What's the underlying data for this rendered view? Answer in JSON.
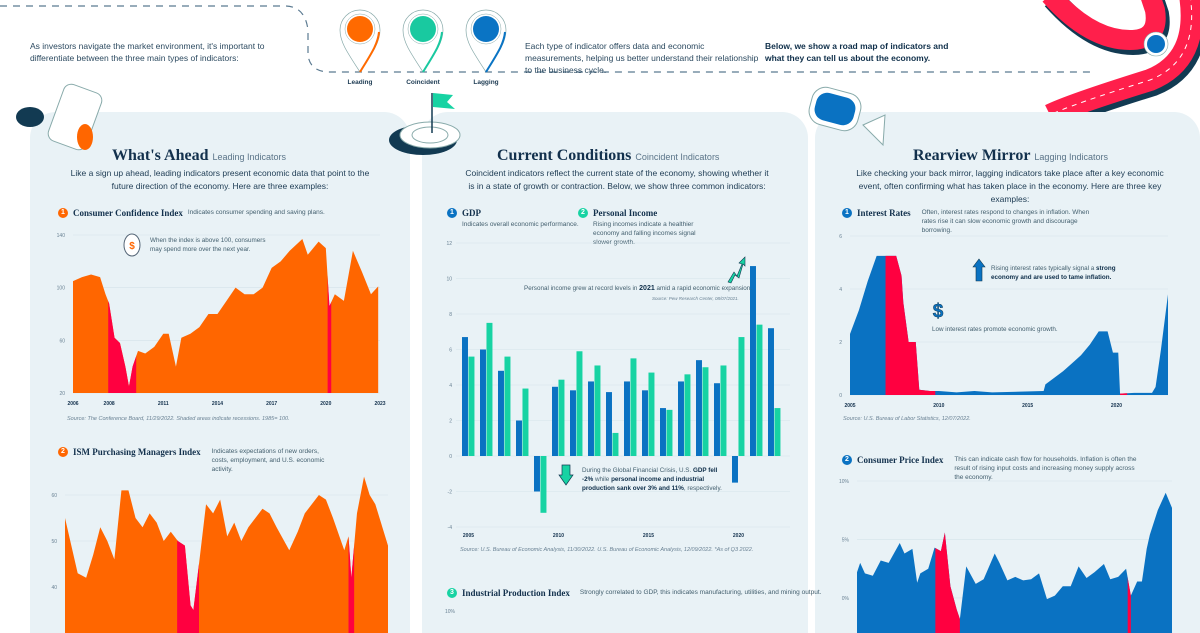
{
  "intro": {
    "left_text": "As investors navigate the market environment, it's important to differentiate between the three main types of indicators:",
    "middle_text": "Each type of indicator offers data and economic measurements, helping us better understand their relationship to the business cycle.",
    "right_text": "Below, we show a road map of indicators and what they can tell us about the economy.",
    "pins": [
      {
        "label": "Leading",
        "color": "#ff6a00",
        "icon": "signpost-icon"
      },
      {
        "label": "Coincident",
        "color": "#19c9a0",
        "icon": "binoculars-icon"
      },
      {
        "label": "Lagging",
        "color": "#0a74c4",
        "icon": "telescope-icon"
      }
    ]
  },
  "colors": {
    "leading": "#ff6600",
    "coincident": "#17d3a3",
    "lagging": "#0a72c2",
    "recession": "#ff0040",
    "panel": "#e9f2f6",
    "road": "#ff1f4b"
  },
  "panels": {
    "leading": {
      "title": "What's Ahead",
      "subtitle": "Leading Indicators",
      "description": "Like a sign up ahead, leading indicators present economic data that point to the future direction of the economy. Here are three examples:"
    },
    "coincident": {
      "title": "Current Conditions",
      "subtitle": "Coincident Indicators",
      "description": "Coincident indicators reflect the current state of the economy, showing whether it is in a state of growth or contraction. Below, we show three common indicators:"
    },
    "lagging": {
      "title": "Rearview Mirror",
      "subtitle": "Lagging Indicators",
      "description": "Like checking your back mirror, lagging indicators take place after a key economic event, often confirming what has taken place in the economy. Here are three key examples:"
    }
  },
  "sections": {
    "cci": {
      "num": "1",
      "title": "Consumer Confidence Index",
      "text": "Indicates consumer spending and saving plans.",
      "note": "When the index is above 100, consumers may spend more over the next year.",
      "source": "Source: The Conference Board, 11/29/2022. Shaded areas indicate recessions. 1985= 100."
    },
    "ism": {
      "num": "2",
      "title": "ISM Purchasing Managers Index",
      "text": "Indicates expectations of new orders, costs, employment, and U.S. economic activity."
    },
    "gdp": {
      "num": "1",
      "title": "GDP",
      "text": "Indicates overall economic performance."
    },
    "pi": {
      "num": "2",
      "title": "Personal Income",
      "text": "Rising incomes indicate a healthier economy and falling incomes signal slower growth."
    },
    "gdp_note_top": {
      "pre": "Personal income grew at record levels in ",
      "bold": "2021",
      "post": " amid a rapid economic expansion.",
      "source": "Source: Pew Research Center, 08/07/2021."
    },
    "gdp_note_bottom": {
      "a": "During the Global Financial Crisis, U.S. ",
      "b": "GDP fell -2%",
      "c": " while ",
      "d": "personal income and industrial production sank over 3% and 11%",
      "e": ", respectively."
    },
    "gdp_source": "Source: U.S. Bureau of Economic Analysis, 11/30/2022. U.S. Bureau of Economic Analysis, 12/09/2022. *As of Q3 2022.",
    "ipi": {
      "num": "3",
      "title": "Industrial Production Index",
      "text": "Strongly correlated to GDP, this indicates manufacturing, utilities, and mining output.",
      "tick": "10%"
    },
    "rates": {
      "num": "1",
      "title": "Interest Rates",
      "text": "Often, interest rates respond to changes in inflation. When rates rise it can slow economic growth and discourage borrowing.",
      "note1_pre": "Rising interest rates typically signal a ",
      "note1_bold": "strong economy and are used to tame inflation.",
      "note2": "Low interest rates promote economic growth.",
      "source": "Source: U.S. Bureau of Labor Statistics, 12/07/2022."
    },
    "cpi": {
      "num": "2",
      "title": "Consumer Price Index",
      "text": "This can indicate cash flow for households. Inflation is often the result of rising input costs and increasing money supply across the economy."
    }
  },
  "chart_data": [
    {
      "id": "cci",
      "type": "area",
      "ylim": [
        20,
        140
      ],
      "yticks": [
        "20",
        "60",
        "100",
        "140"
      ],
      "xlim": [
        2006,
        2023
      ],
      "xticks": [
        "2006",
        "2008",
        "2011",
        "2014",
        "2017",
        "2020",
        "2023"
      ],
      "recessions": [
        [
          2007.95,
          2009.5
        ],
        [
          2020.1,
          2020.3
        ]
      ],
      "x": [
        2006,
        2006.5,
        2007,
        2007.5,
        2007.8,
        2008,
        2008.3,
        2008.6,
        2008.9,
        2009.1,
        2009.3,
        2009.6,
        2010,
        2010.5,
        2011,
        2011.3,
        2011.7,
        2012,
        2012.5,
        2013,
        2013.5,
        2014,
        2014.5,
        2015,
        2015.5,
        2016,
        2016.5,
        2017,
        2017.5,
        2018,
        2018.7,
        2019,
        2019.6,
        2020,
        2020.2,
        2020.5,
        2021,
        2021.5,
        2022,
        2022.5,
        2022.9
      ],
      "y": [
        105,
        108,
        110,
        108,
        95,
        88,
        62,
        58,
        40,
        25,
        40,
        52,
        50,
        55,
        65,
        65,
        40,
        62,
        65,
        70,
        80,
        80,
        90,
        100,
        95,
        95,
        100,
        115,
        120,
        128,
        137,
        125,
        135,
        130,
        86,
        95,
        90,
        128,
        112,
        95,
        101
      ]
    },
    {
      "id": "ism",
      "type": "area",
      "ylim": [
        30,
        65
      ],
      "yticks": [
        "40",
        "50",
        "60"
      ],
      "xlim": [
        2000,
        2022.9
      ],
      "recessions": [
        [
          2007.95,
          2009.5
        ],
        [
          2020.1,
          2020.5
        ]
      ],
      "x": [
        2000,
        2000.9,
        2001.5,
        2002,
        2002.5,
        2003,
        2003.5,
        2004,
        2004.5,
        2005,
        2005.5,
        2006,
        2006.5,
        2007,
        2007.5,
        2008,
        2008.5,
        2008.9,
        2009.1,
        2009.5,
        2010,
        2010.5,
        2011,
        2011.5,
        2012,
        2012.5,
        2013,
        2013.5,
        2014,
        2014.5,
        2015,
        2015.9,
        2016.5,
        2017,
        2018,
        2018.5,
        2019,
        2019.8,
        2020.1,
        2020.3,
        2020.7,
        2021.2,
        2021.6,
        2022,
        2022.5,
        2022.9
      ],
      "y": [
        55,
        43,
        42,
        47,
        53,
        50,
        46,
        61,
        61,
        55,
        53,
        56,
        54,
        50,
        52,
        50,
        49,
        36,
        35,
        45,
        58,
        56,
        59,
        51,
        54,
        50,
        53,
        55,
        57,
        56,
        53,
        48,
        52,
        56,
        60,
        59,
        55,
        48,
        51,
        42,
        56,
        64,
        60,
        58,
        53,
        49
      ]
    },
    {
      "id": "gdp_pi",
      "type": "bar",
      "ylim": [
        -4,
        12
      ],
      "yticks": [
        "-4",
        "-2",
        "0",
        "2",
        "4",
        "6",
        "8",
        "10",
        "12"
      ],
      "xticks": [
        "2005",
        "2010",
        "2015",
        "2020"
      ],
      "categories": [
        2005,
        2006,
        2007,
        2008,
        2009,
        2010,
        2011,
        2012,
        2013,
        2014,
        2015,
        2016,
        2017,
        2018,
        2019,
        2020,
        2021,
        2022
      ],
      "series": [
        {
          "name": "GDP",
          "values": [
            6.7,
            6.0,
            4.8,
            2.0,
            -2.0,
            3.9,
            3.7,
            4.2,
            3.6,
            4.2,
            3.7,
            2.7,
            4.2,
            5.4,
            4.1,
            -1.5,
            10.7,
            7.2
          ]
        },
        {
          "name": "Personal Income",
          "values": [
            5.6,
            7.5,
            5.6,
            3.8,
            -3.2,
            4.3,
            5.9,
            5.1,
            1.3,
            5.5,
            4.7,
            2.6,
            4.6,
            5.0,
            5.1,
            6.7,
            7.4,
            2.7
          ]
        }
      ]
    },
    {
      "id": "rates",
      "type": "area",
      "ylim": [
        0,
        6
      ],
      "yticks": [
        "0",
        "2",
        "4",
        "6"
      ],
      "xlim": [
        2005,
        2022.9
      ],
      "xticks": [
        "2005",
        "2010",
        "2015",
        "2020"
      ],
      "recessions": [
        [
          2007,
          2009.8
        ],
        [
          2020.2,
          2020.6
        ]
      ],
      "x": [
        2005,
        2005.5,
        2006,
        2006.5,
        2007,
        2007.6,
        2007.9,
        2008,
        2008.3,
        2008.7,
        2008.9,
        2009.5,
        2010,
        2011,
        2012,
        2013,
        2015.9,
        2016,
        2017,
        2017.5,
        2018,
        2018.5,
        2019,
        2019.5,
        2019.8,
        2020.1,
        2020.2,
        2021,
        2022,
        2022.2,
        2022.5,
        2022.9
      ],
      "y": [
        2.3,
        3.2,
        4.3,
        5.25,
        5.25,
        5.25,
        4.5,
        3.5,
        2.0,
        2.0,
        0.2,
        0.15,
        0.15,
        0.1,
        0.15,
        0.1,
        0.15,
        0.4,
        0.9,
        1.2,
        1.5,
        1.9,
        2.4,
        2.4,
        1.6,
        1.6,
        0.05,
        0.08,
        0.08,
        0.3,
        1.7,
        3.8
      ]
    },
    {
      "id": "cpi",
      "type": "area",
      "ylim": [
        -3,
        10
      ],
      "yticks": [
        "0%",
        "5%",
        "10%"
      ],
      "ytickvals": [
        0,
        5,
        10
      ],
      "xlim": [
        2003,
        2022.9
      ],
      "recessions": [
        [
          2007.95,
          2009.5
        ],
        [
          2020.1,
          2020.3
        ]
      ],
      "x": [
        2003,
        2003.2,
        2003.5,
        2004,
        2004.5,
        2005,
        2005.7,
        2006,
        2006.5,
        2006.8,
        2007,
        2007.5,
        2007.9,
        2008.3,
        2008.55,
        2008.9,
        2009.3,
        2009.5,
        2009.9,
        2010.5,
        2011,
        2011.7,
        2012,
        2012.5,
        2013,
        2013.5,
        2014,
        2014.5,
        2015,
        2015.5,
        2016,
        2016.5,
        2017,
        2017.5,
        2018,
        2018.6,
        2019,
        2019.5,
        2020,
        2020.3,
        2020.7,
        2021,
        2021.3,
        2021.5,
        2022,
        2022.5,
        2022.9
      ],
      "y": [
        2.2,
        3.0,
        2.1,
        1.9,
        3.2,
        3.0,
        4.7,
        3.8,
        4.2,
        1.3,
        2.1,
        2.5,
        4.3,
        4.0,
        5.6,
        1.0,
        -1.0,
        -1.8,
        2.7,
        1.2,
        1.6,
        3.8,
        3.0,
        1.5,
        1.8,
        1.5,
        1.6,
        2.1,
        -0.1,
        0.2,
        1.0,
        1.0,
        2.7,
        1.7,
        2.2,
        2.9,
        1.6,
        1.8,
        2.5,
        0.2,
        1.4,
        1.4,
        4.2,
        5.4,
        7.5,
        9.0,
        7.7
      ]
    }
  ]
}
